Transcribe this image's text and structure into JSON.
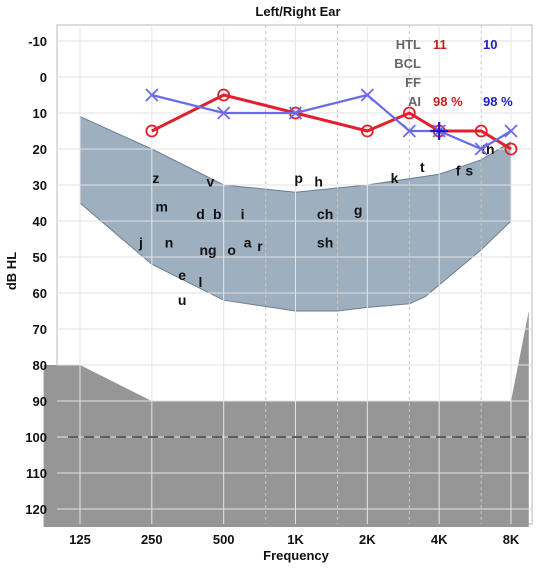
{
  "chart_data": {
    "type": "line",
    "title": "Left/Right Ear",
    "xlabel": "Frequency",
    "ylabel": "dB HL",
    "x_ticks": [
      {
        "freq": 125,
        "label": "125"
      },
      {
        "freq": 250,
        "label": "250"
      },
      {
        "freq": 500,
        "label": "500"
      },
      {
        "freq": 1000,
        "label": "1K"
      },
      {
        "freq": 2000,
        "label": "2K"
      },
      {
        "freq": 4000,
        "label": "4K"
      },
      {
        "freq": 8000,
        "label": "8K"
      }
    ],
    "x_minor_dashed": [
      750,
      1500,
      3000,
      6000
    ],
    "x_scale": "log2",
    "y_ticks": [
      -10,
      0,
      10,
      20,
      30,
      40,
      50,
      60,
      70,
      80,
      90,
      100,
      110,
      120
    ],
    "ylim": [
      -15,
      125
    ],
    "y_inverted": true,
    "grid": true,
    "series": [
      {
        "name": "Right Ear",
        "marker": "circle",
        "color": "#e0202a",
        "points": [
          [
            250,
            15
          ],
          [
            500,
            5
          ],
          [
            1000,
            10
          ],
          [
            2000,
            15
          ],
          [
            3000,
            10
          ],
          [
            4000,
            15
          ],
          [
            6000,
            15
          ],
          [
            8000,
            20
          ]
        ]
      },
      {
        "name": "Left Ear",
        "marker": "x",
        "color": "#6b6be8",
        "points": [
          [
            250,
            5
          ],
          [
            500,
            10
          ],
          [
            1000,
            10
          ],
          [
            2000,
            5
          ],
          [
            3000,
            15
          ],
          [
            4000,
            15
          ],
          [
            6000,
            20
          ],
          [
            8000,
            15
          ]
        ]
      }
    ],
    "aided_threshold_point": {
      "freq": 4000,
      "db": 15,
      "color": "#1a1ad0"
    },
    "speech_banana": {
      "upper": [
        [
          125,
          11
        ],
        [
          250,
          20
        ],
        [
          500,
          30
        ],
        [
          1000,
          32
        ],
        [
          2000,
          30
        ],
        [
          4000,
          27
        ],
        [
          6000,
          23
        ],
        [
          8000,
          18
        ]
      ],
      "lower": [
        [
          125,
          35
        ],
        [
          250,
          52
        ],
        [
          500,
          62
        ],
        [
          1000,
          65
        ],
        [
          1500,
          65
        ],
        [
          2000,
          64
        ],
        [
          3000,
          63
        ],
        [
          3500,
          61
        ],
        [
          6000,
          48
        ],
        [
          8000,
          40
        ]
      ],
      "color": "#9eb0c0"
    },
    "loss_region": {
      "points": [
        [
          88,
          80
        ],
        [
          125,
          80
        ],
        [
          250,
          90
        ],
        [
          8000,
          90
        ],
        [
          9500,
          65
        ],
        [
          9500,
          125
        ],
        [
          88,
          125
        ]
      ],
      "color": "#969696"
    },
    "dashed_reference_db": 100,
    "phonemes": [
      {
        "text": "z",
        "freq": 260,
        "db": 28
      },
      {
        "text": "v",
        "freq": 440,
        "db": 29
      },
      {
        "text": "p",
        "freq": 1030,
        "db": 28
      },
      {
        "text": "h",
        "freq": 1250,
        "db": 29
      },
      {
        "text": "k",
        "freq": 2600,
        "db": 28
      },
      {
        "text": "t",
        "freq": 3400,
        "db": 25
      },
      {
        "text": "f",
        "freq": 4800,
        "db": 26
      },
      {
        "text": "s",
        "freq": 5350,
        "db": 26
      },
      {
        "text": "th",
        "freq": 6400,
        "db": 20
      },
      {
        "text": "m",
        "freq": 275,
        "db": 36
      },
      {
        "text": "d",
        "freq": 400,
        "db": 38
      },
      {
        "text": "b",
        "freq": 470,
        "db": 38
      },
      {
        "text": "i",
        "freq": 600,
        "db": 38
      },
      {
        "text": "ch",
        "freq": 1330,
        "db": 38
      },
      {
        "text": "g",
        "freq": 1830,
        "db": 37
      },
      {
        "text": "j",
        "freq": 225,
        "db": 46
      },
      {
        "text": "n",
        "freq": 295,
        "db": 46
      },
      {
        "text": "ng",
        "freq": 430,
        "db": 48
      },
      {
        "text": "o",
        "freq": 540,
        "db": 48
      },
      {
        "text": "a",
        "freq": 630,
        "db": 46
      },
      {
        "text": "r",
        "freq": 710,
        "db": 47
      },
      {
        "text": "sh",
        "freq": 1330,
        "db": 46
      },
      {
        "text": "e",
        "freq": 335,
        "db": 55
      },
      {
        "text": "l",
        "freq": 400,
        "db": 57
      },
      {
        "text": "u",
        "freq": 335,
        "db": 62
      }
    ],
    "legend": {
      "rows": [
        {
          "label": "HTL",
          "right": "11",
          "left": "10"
        },
        {
          "label": "BCL",
          "right": "",
          "left": ""
        },
        {
          "label": "FF",
          "right": "",
          "left": ""
        },
        {
          "label": "AI",
          "right": "98 %",
          "left": "98 %"
        }
      ],
      "placement": "top-right",
      "right_color": "#c81e1e",
      "left_color": "#2020c0"
    }
  }
}
